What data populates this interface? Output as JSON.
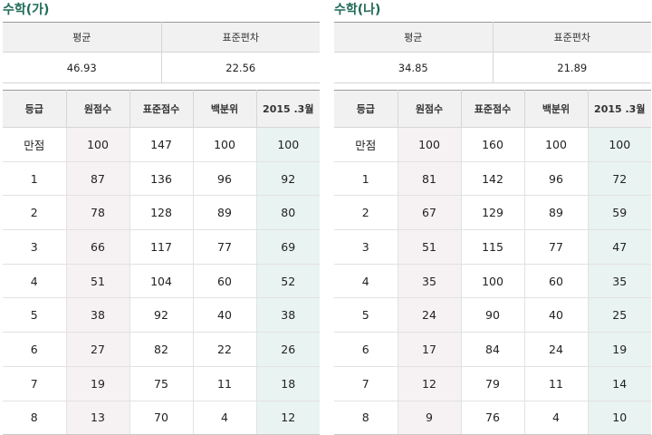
{
  "panels": [
    {
      "title": "수학(가)",
      "stats_headers": [
        "평균",
        "표준편차"
      ],
      "stats_values": [
        "46.93",
        "22.56"
      ],
      "columns": [
        "등급",
        "원점수",
        "표준점수",
        "백분위",
        "2015 .3월"
      ],
      "rows": [
        [
          "만점",
          "100",
          "147",
          "100",
          "100"
        ],
        [
          "1",
          "87",
          "136",
          "96",
          "92"
        ],
        [
          "2",
          "78",
          "128",
          "89",
          "80"
        ],
        [
          "3",
          "66",
          "117",
          "77",
          "69"
        ],
        [
          "4",
          "51",
          "104",
          "60",
          "52"
        ],
        [
          "5",
          "38",
          "92",
          "40",
          "38"
        ],
        [
          "6",
          "27",
          "82",
          "22",
          "26"
        ],
        [
          "7",
          "19",
          "75",
          "11",
          "18"
        ],
        [
          "8",
          "13",
          "70",
          "4",
          "12"
        ]
      ]
    },
    {
      "title": "수학(나)",
      "stats_headers": [
        "평균",
        "표준편차"
      ],
      "stats_values": [
        "34.85",
        "21.89"
      ],
      "columns": [
        "등급",
        "원점수",
        "표준점수",
        "백분위",
        "2015 .3월"
      ],
      "rows": [
        [
          "만점",
          "100",
          "160",
          "100",
          "100"
        ],
        [
          "1",
          "81",
          "142",
          "96",
          "72"
        ],
        [
          "2",
          "67",
          "129",
          "89",
          "59"
        ],
        [
          "3",
          "51",
          "115",
          "77",
          "47"
        ],
        [
          "4",
          "35",
          "100",
          "60",
          "35"
        ],
        [
          "5",
          "24",
          "90",
          "40",
          "25"
        ],
        [
          "6",
          "17",
          "84",
          "24",
          "19"
        ],
        [
          "7",
          "12",
          "79",
          "11",
          "14"
        ],
        [
          "8",
          "9",
          "76",
          "4",
          "10"
        ]
      ]
    }
  ],
  "colors": {
    "title": "#1e6b57",
    "header_bg": "#f1f1f1",
    "raw_score_bg": "#f6f2f3",
    "march_score_bg": "#e9f3f1"
  }
}
